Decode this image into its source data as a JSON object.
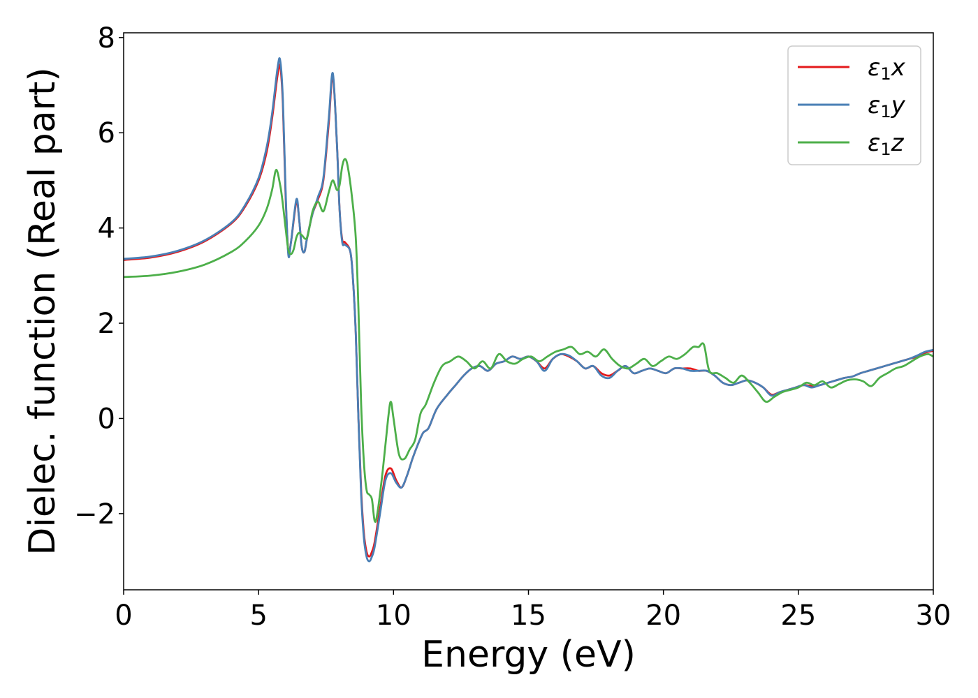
{
  "chart_data": {
    "type": "line",
    "xlabel": "Energy (eV)",
    "ylabel": "Dielec. function (Real part)",
    "xlim": [
      0,
      30
    ],
    "ylim": [
      -3.6,
      8.1
    ],
    "xticks": [
      0,
      5,
      10,
      15,
      20,
      25,
      30
    ],
    "xtick_labels": [
      "0",
      "5",
      "10",
      "15",
      "20",
      "25",
      "30"
    ],
    "yticks": [
      -2,
      0,
      2,
      4,
      6,
      8
    ],
    "ytick_labels": [
      "−2",
      "0",
      "2",
      "4",
      "6",
      "8"
    ],
    "grid": false,
    "legend_position": "top-right",
    "series": [
      {
        "name": "ε₁x",
        "symbol": "ε",
        "subscript": "1",
        "suffix": "x",
        "color": "#e41a1c",
        "x": [
          0,
          1,
          2,
          3,
          4,
          4.5,
          5,
          5.3,
          5.5,
          5.7,
          5.8,
          5.9,
          6.0,
          6.1,
          6.2,
          6.4,
          6.5,
          6.6,
          6.7,
          6.8,
          7.0,
          7.2,
          7.4,
          7.6,
          7.75,
          7.9,
          8.0,
          8.1,
          8.2,
          8.4,
          8.5,
          8.6,
          8.7,
          8.8,
          8.9,
          9.0,
          9.1,
          9.2,
          9.3,
          9.5,
          9.7,
          9.9,
          10.1,
          10.3,
          10.5,
          10.7,
          10.9,
          11.1,
          11.3,
          11.6,
          12.0,
          12.3,
          12.6,
          12.9,
          13.2,
          13.5,
          13.8,
          14.1,
          14.4,
          14.7,
          15.0,
          15.3,
          15.6,
          15.9,
          16.2,
          16.5,
          16.8,
          17.1,
          17.4,
          17.7,
          18.0,
          18.3,
          18.6,
          18.9,
          19.2,
          19.5,
          19.8,
          20.1,
          20.4,
          20.7,
          21.0,
          21.3,
          21.6,
          21.9,
          22.2,
          22.5,
          22.8,
          23.1,
          23.4,
          23.7,
          24.0,
          24.3,
          24.6,
          24.9,
          25.2,
          25.5,
          25.8,
          26.1,
          26.4,
          26.7,
          27.0,
          27.3,
          27.6,
          27.9,
          28.2,
          28.5,
          28.8,
          29.1,
          29.4,
          29.7,
          30.0
        ],
        "y": [
          3.33,
          3.38,
          3.5,
          3.72,
          4.1,
          4.45,
          5.0,
          5.6,
          6.3,
          7.2,
          7.4,
          6.6,
          4.7,
          3.5,
          3.7,
          4.55,
          4.2,
          3.6,
          3.5,
          3.8,
          4.3,
          4.6,
          5.0,
          6.2,
          7.2,
          5.8,
          4.4,
          3.75,
          3.7,
          3.5,
          2.9,
          1.8,
          0.0,
          -1.5,
          -2.4,
          -2.8,
          -2.9,
          -2.8,
          -2.6,
          -1.9,
          -1.2,
          -1.05,
          -1.3,
          -1.45,
          -1.2,
          -0.85,
          -0.55,
          -0.3,
          -0.2,
          0.2,
          0.5,
          0.7,
          0.9,
          1.05,
          1.1,
          1.0,
          1.15,
          1.2,
          1.3,
          1.25,
          1.3,
          1.2,
          1.05,
          1.25,
          1.35,
          1.3,
          1.2,
          1.05,
          1.1,
          0.95,
          0.9,
          1.0,
          1.1,
          0.95,
          1.0,
          1.05,
          1.0,
          0.95,
          1.05,
          1.05,
          1.05,
          1.0,
          1.0,
          0.9,
          0.75,
          0.7,
          0.75,
          0.8,
          0.75,
          0.65,
          0.5,
          0.55,
          0.6,
          0.65,
          0.7,
          0.68,
          0.7,
          0.75,
          0.8,
          0.85,
          0.88,
          0.95,
          1.0,
          1.05,
          1.1,
          1.15,
          1.2,
          1.25,
          1.3,
          1.38,
          1.42
        ]
      },
      {
        "name": "ε₁y",
        "symbol": "ε",
        "subscript": "1",
        "suffix": "y",
        "color": "#4a7fb5",
        "x": [
          0,
          1,
          2,
          3,
          4,
          4.5,
          5,
          5.3,
          5.5,
          5.7,
          5.8,
          5.9,
          6.0,
          6.1,
          6.2,
          6.4,
          6.5,
          6.6,
          6.7,
          6.8,
          7.0,
          7.2,
          7.4,
          7.6,
          7.75,
          7.9,
          8.0,
          8.1,
          8.2,
          8.4,
          8.5,
          8.6,
          8.7,
          8.8,
          8.9,
          9.0,
          9.1,
          9.2,
          9.3,
          9.5,
          9.7,
          9.9,
          10.1,
          10.3,
          10.5,
          10.7,
          10.9,
          11.1,
          11.3,
          11.6,
          12.0,
          12.3,
          12.6,
          12.9,
          13.2,
          13.5,
          13.8,
          14.1,
          14.4,
          14.7,
          15.0,
          15.3,
          15.6,
          15.9,
          16.2,
          16.5,
          16.8,
          17.1,
          17.4,
          17.7,
          18.0,
          18.3,
          18.6,
          18.9,
          19.2,
          19.5,
          19.8,
          20.1,
          20.4,
          20.7,
          21.0,
          21.3,
          21.6,
          21.9,
          22.2,
          22.5,
          22.8,
          23.1,
          23.4,
          23.7,
          24.0,
          24.3,
          24.6,
          24.9,
          25.2,
          25.5,
          25.8,
          26.1,
          26.4,
          26.7,
          27.0,
          27.3,
          27.6,
          27.9,
          28.2,
          28.5,
          28.8,
          29.1,
          29.4,
          29.7,
          30.0
        ],
        "y": [
          3.35,
          3.4,
          3.52,
          3.74,
          4.12,
          4.48,
          5.05,
          5.7,
          6.4,
          7.35,
          7.52,
          6.7,
          4.8,
          3.45,
          3.7,
          4.6,
          4.2,
          3.6,
          3.5,
          3.8,
          4.3,
          4.65,
          5.05,
          6.3,
          7.25,
          5.8,
          4.4,
          3.7,
          3.65,
          3.5,
          2.9,
          1.8,
          0.0,
          -1.6,
          -2.5,
          -2.9,
          -3.0,
          -2.9,
          -2.7,
          -2.0,
          -1.3,
          -1.15,
          -1.35,
          -1.45,
          -1.2,
          -0.85,
          -0.55,
          -0.3,
          -0.2,
          0.2,
          0.5,
          0.7,
          0.9,
          1.05,
          1.1,
          1.0,
          1.15,
          1.2,
          1.3,
          1.25,
          1.3,
          1.2,
          1.0,
          1.25,
          1.35,
          1.32,
          1.2,
          1.05,
          1.1,
          0.9,
          0.85,
          1.0,
          1.1,
          0.95,
          1.0,
          1.05,
          1.0,
          0.95,
          1.05,
          1.05,
          1.0,
          1.0,
          1.0,
          0.9,
          0.75,
          0.7,
          0.75,
          0.8,
          0.75,
          0.65,
          0.48,
          0.55,
          0.6,
          0.65,
          0.7,
          0.65,
          0.7,
          0.75,
          0.8,
          0.85,
          0.88,
          0.95,
          1.0,
          1.05,
          1.1,
          1.15,
          1.2,
          1.25,
          1.32,
          1.4,
          1.44
        ]
      },
      {
        "name": "ε₁z",
        "symbol": "ε",
        "subscript": "1",
        "suffix": "z",
        "color": "#4daf4a",
        "x": [
          0,
          1,
          2,
          3,
          4,
          4.5,
          5,
          5.3,
          5.5,
          5.65,
          5.8,
          5.9,
          6.0,
          6.1,
          6.2,
          6.3,
          6.4,
          6.5,
          6.6,
          6.8,
          7.0,
          7.2,
          7.4,
          7.6,
          7.75,
          7.9,
          8.0,
          8.1,
          8.2,
          8.3,
          8.45,
          8.6,
          8.7,
          8.8,
          8.9,
          9.0,
          9.1,
          9.2,
          9.3,
          9.4,
          9.6,
          9.8,
          9.9,
          10.0,
          10.2,
          10.4,
          10.6,
          10.8,
          11.0,
          11.2,
          11.5,
          11.8,
          12.1,
          12.4,
          12.7,
          13.0,
          13.3,
          13.6,
          13.9,
          14.2,
          14.5,
          14.8,
          15.1,
          15.4,
          15.7,
          16.0,
          16.3,
          16.6,
          16.9,
          17.2,
          17.5,
          17.8,
          18.1,
          18.4,
          18.7,
          19.0,
          19.3,
          19.6,
          19.9,
          20.2,
          20.5,
          20.8,
          21.1,
          21.3,
          21.5,
          21.7,
          22.0,
          22.3,
          22.6,
          22.9,
          23.2,
          23.5,
          23.8,
          24.1,
          24.4,
          24.7,
          25.0,
          25.3,
          25.6,
          25.9,
          26.2,
          26.5,
          26.8,
          27.1,
          27.4,
          27.7,
          28.0,
          28.3,
          28.6,
          28.9,
          29.2,
          29.5,
          29.8,
          30.0
        ],
        "y": [
          2.97,
          3.0,
          3.08,
          3.23,
          3.5,
          3.72,
          4.05,
          4.4,
          4.8,
          5.22,
          4.9,
          4.5,
          4.0,
          3.55,
          3.45,
          3.55,
          3.8,
          3.9,
          3.85,
          3.8,
          4.35,
          4.55,
          4.35,
          4.75,
          5.0,
          4.8,
          4.9,
          5.3,
          5.45,
          5.3,
          4.7,
          3.8,
          2.3,
          0.3,
          -0.9,
          -1.5,
          -1.6,
          -1.7,
          -2.15,
          -2.0,
          -1.1,
          0.0,
          0.35,
          0.0,
          -0.75,
          -0.85,
          -0.65,
          -0.45,
          0.1,
          0.3,
          0.75,
          1.1,
          1.2,
          1.3,
          1.2,
          1.05,
          1.2,
          1.05,
          1.35,
          1.2,
          1.15,
          1.25,
          1.3,
          1.2,
          1.3,
          1.4,
          1.45,
          1.5,
          1.35,
          1.4,
          1.3,
          1.45,
          1.25,
          1.1,
          1.05,
          1.15,
          1.25,
          1.1,
          1.2,
          1.3,
          1.25,
          1.35,
          1.5,
          1.5,
          1.55,
          1.0,
          0.95,
          0.85,
          0.75,
          0.9,
          0.75,
          0.55,
          0.35,
          0.45,
          0.55,
          0.6,
          0.65,
          0.75,
          0.7,
          0.78,
          0.65,
          0.72,
          0.8,
          0.82,
          0.78,
          0.68,
          0.85,
          0.95,
          1.05,
          1.1,
          1.2,
          1.3,
          1.35,
          1.3
        ]
      }
    ]
  }
}
